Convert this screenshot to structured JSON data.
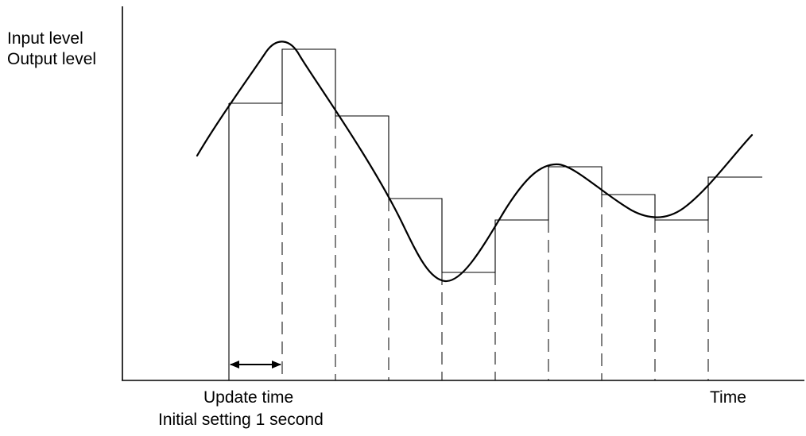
{
  "labels": {
    "y_axis_line1": "Input level",
    "y_axis_line2": "Output level",
    "x_axis": "Time",
    "update_time": "Update time",
    "initial_setting": "Initial setting 1 second"
  }
}
